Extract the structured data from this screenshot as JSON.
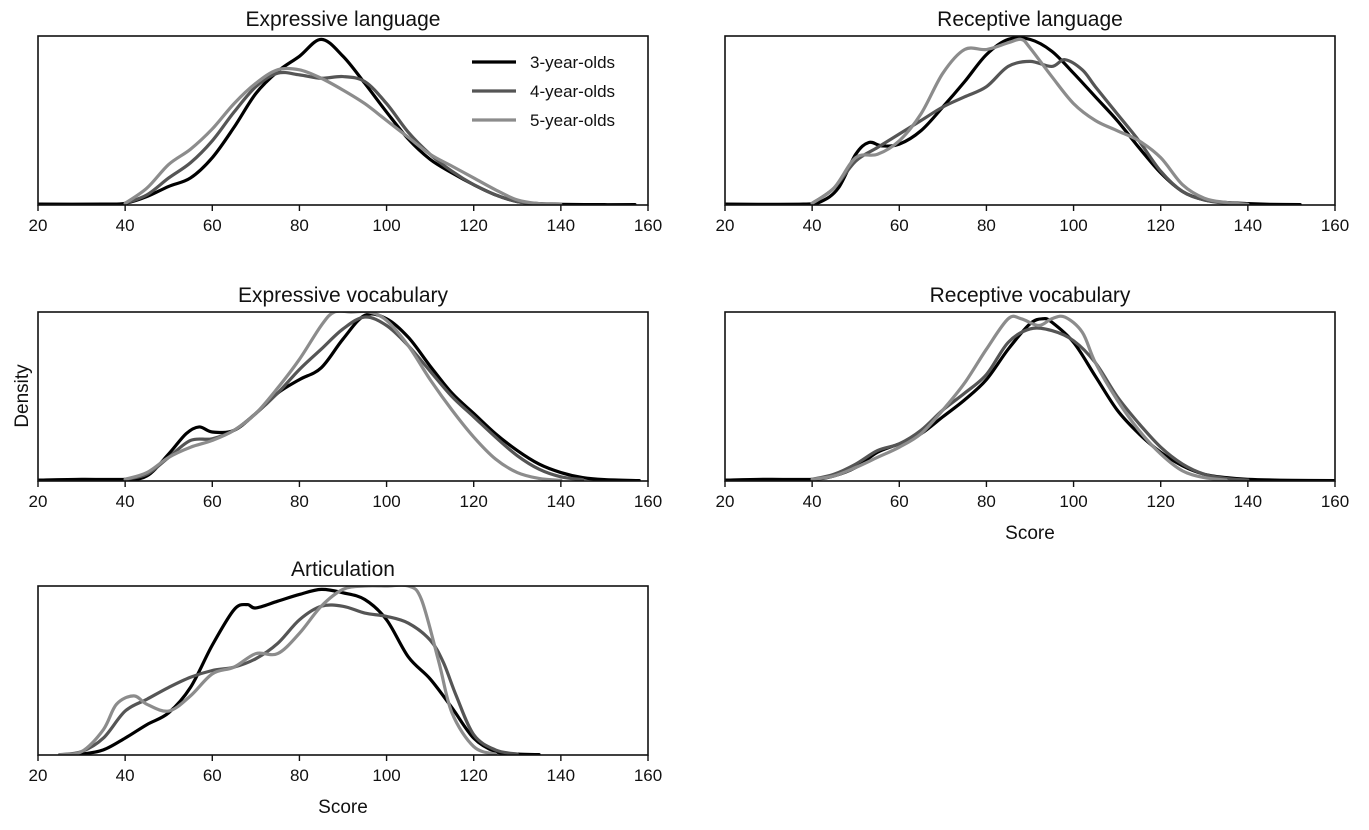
{
  "figure": {
    "ylabel": "Density",
    "legend_placement": "top-right of first panel",
    "xlabel_panels": [
      "Articulation",
      "Receptive vocabulary"
    ]
  },
  "chart_data": [
    {
      "type": "line",
      "title": "Expressive language",
      "xlabel": "",
      "xlim": [
        20,
        160
      ],
      "xticks": [
        20,
        40,
        60,
        80,
        100,
        120,
        140,
        160
      ],
      "ylim": [
        0,
        1
      ],
      "grid": false,
      "legend": true,
      "series": [
        {
          "name": "3-year-olds",
          "color": "#000000",
          "x": [
            20,
            35,
            40,
            45,
            50,
            55,
            60,
            65,
            70,
            75,
            80,
            85,
            90,
            95,
            100,
            105,
            110,
            115,
            120,
            125,
            130,
            135,
            140,
            150,
            157
          ],
          "y": [
            0.005,
            0.005,
            0.01,
            0.05,
            0.11,
            0.16,
            0.28,
            0.46,
            0.66,
            0.79,
            0.88,
            0.98,
            0.88,
            0.72,
            0.55,
            0.39,
            0.27,
            0.19,
            0.12,
            0.06,
            0.02,
            0.008,
            0.004,
            0.002,
            0.002
          ]
        },
        {
          "name": "4-year-olds",
          "color": "#555555",
          "x": [
            40,
            45,
            50,
            55,
            60,
            65,
            70,
            75,
            80,
            85,
            90,
            95,
            100,
            105,
            110,
            115,
            120,
            125,
            130,
            135,
            140
          ],
          "y": [
            0.01,
            0.06,
            0.16,
            0.25,
            0.38,
            0.55,
            0.7,
            0.78,
            0.77,
            0.75,
            0.76,
            0.73,
            0.6,
            0.43,
            0.3,
            0.2,
            0.12,
            0.06,
            0.02,
            0.006,
            0.002
          ]
        },
        {
          "name": "5-year-olds",
          "color": "#8c8c8c",
          "x": [
            40,
            45,
            50,
            55,
            60,
            65,
            70,
            75,
            80,
            85,
            90,
            95,
            100,
            105,
            110,
            115,
            120,
            125,
            130,
            135,
            140
          ],
          "y": [
            0.01,
            0.1,
            0.24,
            0.33,
            0.45,
            0.6,
            0.72,
            0.8,
            0.8,
            0.75,
            0.68,
            0.6,
            0.5,
            0.4,
            0.3,
            0.23,
            0.16,
            0.09,
            0.03,
            0.008,
            0.002
          ]
        }
      ]
    },
    {
      "type": "line",
      "title": "Receptive language",
      "xlabel": "",
      "xlim": [
        20,
        160
      ],
      "xticks": [
        20,
        40,
        60,
        80,
        100,
        120,
        140,
        160
      ],
      "ylim": [
        0,
        1
      ],
      "grid": false,
      "legend": false,
      "series": [
        {
          "name": "3-year-olds",
          "color": "#000000",
          "x": [
            20,
            38,
            42,
            46,
            50,
            53,
            56,
            60,
            65,
            70,
            75,
            80,
            85,
            90,
            95,
            100,
            105,
            110,
            115,
            120,
            125,
            130,
            135,
            140,
            145,
            152
          ],
          "y": [
            0.005,
            0.005,
            0.02,
            0.1,
            0.3,
            0.37,
            0.35,
            0.36,
            0.44,
            0.58,
            0.73,
            0.89,
            0.98,
            0.98,
            0.91,
            0.78,
            0.64,
            0.5,
            0.34,
            0.19,
            0.08,
            0.03,
            0.015,
            0.008,
            0.004,
            0.002
          ]
        },
        {
          "name": "4-year-olds",
          "color": "#555555",
          "x": [
            40,
            45,
            50,
            55,
            60,
            65,
            70,
            75,
            80,
            85,
            90,
            95,
            98,
            102,
            105,
            110,
            115,
            120,
            125,
            130,
            135,
            140
          ],
          "y": [
            0.01,
            0.1,
            0.26,
            0.34,
            0.42,
            0.5,
            0.58,
            0.64,
            0.7,
            0.82,
            0.85,
            0.82,
            0.86,
            0.8,
            0.7,
            0.54,
            0.38,
            0.2,
            0.08,
            0.03,
            0.01,
            0.003
          ]
        },
        {
          "name": "5-year-olds",
          "color": "#8c8c8c",
          "x": [
            40,
            45,
            50,
            55,
            60,
            65,
            70,
            75,
            80,
            85,
            88,
            90,
            95,
            100,
            105,
            110,
            115,
            120,
            125,
            130,
            135,
            140
          ],
          "y": [
            0.01,
            0.1,
            0.28,
            0.3,
            0.38,
            0.54,
            0.78,
            0.92,
            0.92,
            0.96,
            0.98,
            0.93,
            0.76,
            0.6,
            0.5,
            0.44,
            0.38,
            0.28,
            0.12,
            0.04,
            0.015,
            0.004
          ]
        }
      ]
    },
    {
      "type": "line",
      "title": "Expressive vocabulary",
      "xlabel": "",
      "xlim": [
        20,
        160
      ],
      "xticks": [
        20,
        40,
        60,
        80,
        100,
        120,
        140,
        160
      ],
      "ylim": [
        0,
        1
      ],
      "grid": false,
      "legend": false,
      "series": [
        {
          "name": "3-year-olds",
          "color": "#000000",
          "x": [
            20,
            30,
            40,
            45,
            50,
            54,
            57,
            60,
            65,
            70,
            75,
            80,
            85,
            90,
            95,
            100,
            105,
            110,
            115,
            120,
            125,
            130,
            135,
            140,
            145,
            150,
            158
          ],
          "y": [
            0.005,
            0.01,
            0.01,
            0.03,
            0.16,
            0.28,
            0.32,
            0.29,
            0.3,
            0.4,
            0.52,
            0.6,
            0.67,
            0.84,
            0.98,
            0.96,
            0.85,
            0.68,
            0.52,
            0.4,
            0.28,
            0.18,
            0.1,
            0.05,
            0.02,
            0.008,
            0.002
          ]
        },
        {
          "name": "4-year-olds",
          "color": "#555555",
          "x": [
            40,
            45,
            50,
            55,
            60,
            65,
            70,
            75,
            80,
            85,
            90,
            95,
            100,
            105,
            110,
            115,
            120,
            125,
            130,
            135,
            140,
            145
          ],
          "y": [
            0.01,
            0.04,
            0.14,
            0.24,
            0.25,
            0.3,
            0.4,
            0.52,
            0.66,
            0.78,
            0.9,
            0.97,
            0.92,
            0.8,
            0.65,
            0.5,
            0.38,
            0.26,
            0.15,
            0.07,
            0.025,
            0.008
          ]
        },
        {
          "name": "5-year-olds",
          "color": "#8c8c8c",
          "x": [
            40,
            45,
            50,
            55,
            60,
            65,
            70,
            75,
            80,
            85,
            88,
            92,
            96,
            100,
            105,
            110,
            115,
            120,
            125,
            130,
            135,
            140
          ],
          "y": [
            0.01,
            0.05,
            0.14,
            0.2,
            0.24,
            0.3,
            0.4,
            0.55,
            0.72,
            0.92,
            1.0,
            1.0,
            1.0,
            0.95,
            0.8,
            0.6,
            0.42,
            0.26,
            0.13,
            0.05,
            0.015,
            0.004
          ]
        }
      ]
    },
    {
      "type": "line",
      "title": "Receptive vocabulary",
      "xlabel": "Score",
      "xlim": [
        20,
        160
      ],
      "xticks": [
        20,
        40,
        60,
        80,
        100,
        120,
        140,
        160
      ],
      "ylim": [
        0,
        1
      ],
      "grid": false,
      "legend": false,
      "series": [
        {
          "name": "3-year-olds",
          "color": "#000000",
          "x": [
            20,
            30,
            40,
            45,
            50,
            55,
            60,
            65,
            70,
            75,
            80,
            85,
            90,
            93,
            95,
            100,
            105,
            110,
            115,
            120,
            125,
            130,
            135,
            140,
            150,
            160
          ],
          "y": [
            0.005,
            0.01,
            0.01,
            0.03,
            0.08,
            0.17,
            0.22,
            0.28,
            0.38,
            0.48,
            0.6,
            0.78,
            0.93,
            0.96,
            0.94,
            0.82,
            0.62,
            0.42,
            0.28,
            0.17,
            0.09,
            0.04,
            0.02,
            0.01,
            0.004,
            0.002
          ]
        },
        {
          "name": "4-year-olds",
          "color": "#555555",
          "x": [
            40,
            45,
            50,
            55,
            60,
            65,
            70,
            75,
            80,
            85,
            90,
            95,
            100,
            105,
            110,
            115,
            120,
            125,
            130,
            135,
            140
          ],
          "y": [
            0.01,
            0.04,
            0.1,
            0.18,
            0.22,
            0.3,
            0.42,
            0.52,
            0.63,
            0.82,
            0.9,
            0.89,
            0.83,
            0.7,
            0.5,
            0.34,
            0.2,
            0.1,
            0.04,
            0.015,
            0.005
          ]
        },
        {
          "name": "5-year-olds",
          "color": "#8c8c8c",
          "x": [
            40,
            45,
            50,
            55,
            60,
            65,
            70,
            75,
            80,
            85,
            88,
            92,
            95,
            98,
            102,
            105,
            110,
            115,
            120,
            125,
            130,
            135
          ],
          "y": [
            0.01,
            0.03,
            0.08,
            0.14,
            0.2,
            0.28,
            0.42,
            0.58,
            0.78,
            0.96,
            0.96,
            0.92,
            0.96,
            0.97,
            0.88,
            0.7,
            0.48,
            0.3,
            0.16,
            0.06,
            0.02,
            0.005
          ]
        }
      ]
    },
    {
      "type": "line",
      "title": "Articulation",
      "xlabel": "Score",
      "xlim": [
        20,
        160
      ],
      "xticks": [
        20,
        40,
        60,
        80,
        100,
        120,
        140,
        160
      ],
      "ylim": [
        0,
        1
      ],
      "grid": false,
      "legend": false,
      "series": [
        {
          "name": "3-year-olds",
          "color": "#000000",
          "x": [
            25,
            30,
            35,
            40,
            45,
            50,
            55,
            60,
            65,
            68,
            70,
            75,
            80,
            85,
            90,
            95,
            100,
            105,
            110,
            115,
            120,
            125,
            130,
            135
          ],
          "y": [
            0.002,
            0.005,
            0.03,
            0.1,
            0.18,
            0.25,
            0.4,
            0.65,
            0.86,
            0.89,
            0.87,
            0.91,
            0.95,
            0.98,
            0.96,
            0.92,
            0.8,
            0.58,
            0.45,
            0.28,
            0.1,
            0.02,
            0.005,
            0.002
          ]
        },
        {
          "name": "4-year-olds",
          "color": "#555555",
          "x": [
            25,
            30,
            35,
            40,
            45,
            50,
            55,
            60,
            65,
            70,
            75,
            80,
            85,
            90,
            95,
            100,
            105,
            110,
            113,
            116,
            120,
            125,
            130
          ],
          "y": [
            0.002,
            0.02,
            0.1,
            0.26,
            0.33,
            0.4,
            0.46,
            0.5,
            0.52,
            0.57,
            0.66,
            0.8,
            0.88,
            0.88,
            0.84,
            0.82,
            0.78,
            0.68,
            0.55,
            0.35,
            0.12,
            0.03,
            0.005
          ]
        },
        {
          "name": "5-year-olds",
          "color": "#8c8c8c",
          "x": [
            25,
            30,
            35,
            38,
            42,
            45,
            50,
            55,
            60,
            65,
            70,
            75,
            80,
            85,
            90,
            95,
            100,
            105,
            108,
            112,
            115,
            120,
            125
          ],
          "y": [
            0.002,
            0.02,
            0.15,
            0.3,
            0.35,
            0.3,
            0.26,
            0.35,
            0.48,
            0.52,
            0.6,
            0.6,
            0.72,
            0.88,
            0.98,
            1.0,
            1.0,
            1.0,
            0.92,
            0.55,
            0.25,
            0.05,
            0.005
          ]
        }
      ]
    }
  ]
}
